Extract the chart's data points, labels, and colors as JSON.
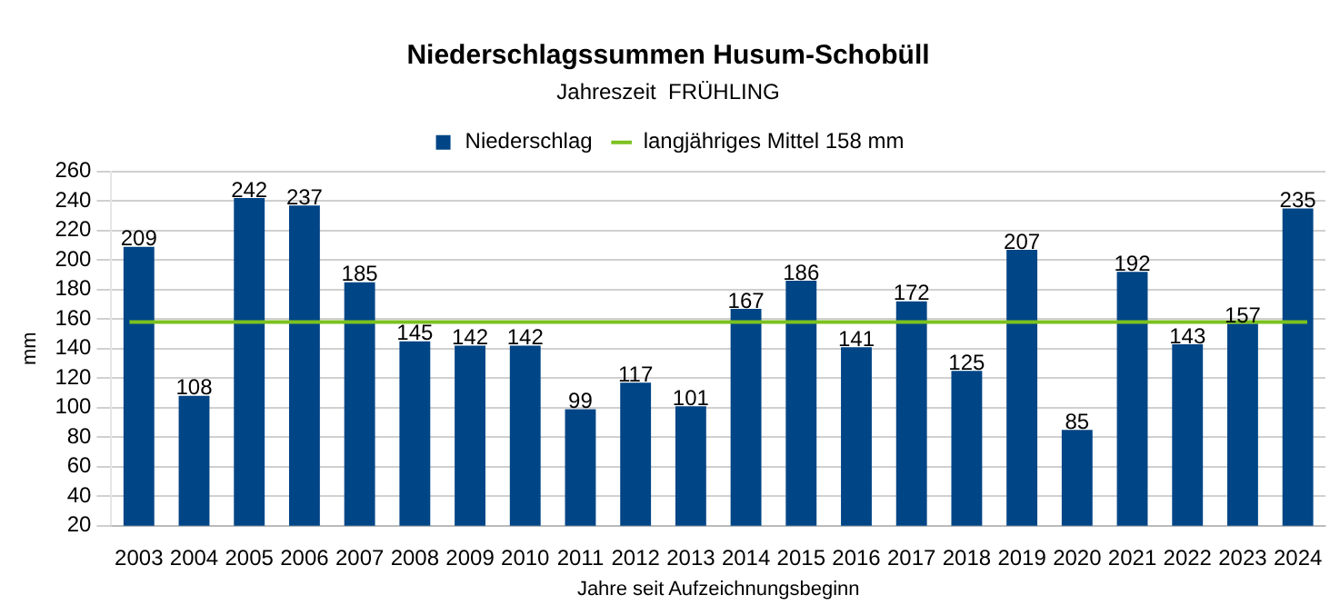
{
  "chart_data": {
    "type": "bar",
    "title": "Niederschlagssummen Husum-Schobüll",
    "subtitle": "Jahreszeit  FRÜHLING",
    "xlabel": "Jahre seit Aufzeichnungsbeginn",
    "ylabel": "mm",
    "categories": [
      "2003",
      "2004",
      "2005",
      "2006",
      "2007",
      "2008",
      "2009",
      "2010",
      "2011",
      "2012",
      "2013",
      "2014",
      "2015",
      "2016",
      "2017",
      "2018",
      "2019",
      "2020",
      "2021",
      "2022",
      "2023",
      "2024"
    ],
    "series": [
      {
        "name": "Niederschlag",
        "color": "#004586",
        "values": [
          209,
          108,
          242,
          237,
          185,
          145,
          142,
          142,
          99,
          117,
          101,
          167,
          186,
          141,
          172,
          125,
          207,
          85,
          192,
          143,
          157,
          235
        ]
      }
    ],
    "ref_lines": [
      {
        "axis": "y",
        "value": 158,
        "label": "langjähriges Mittel 158 mm",
        "color": "#7bc11f"
      }
    ],
    "ylim": [
      20,
      260
    ],
    "yticks": [
      20,
      40,
      60,
      80,
      100,
      120,
      140,
      160,
      180,
      200,
      220,
      240,
      260
    ],
    "grid": "y",
    "legend": "top",
    "data_labels": true
  }
}
